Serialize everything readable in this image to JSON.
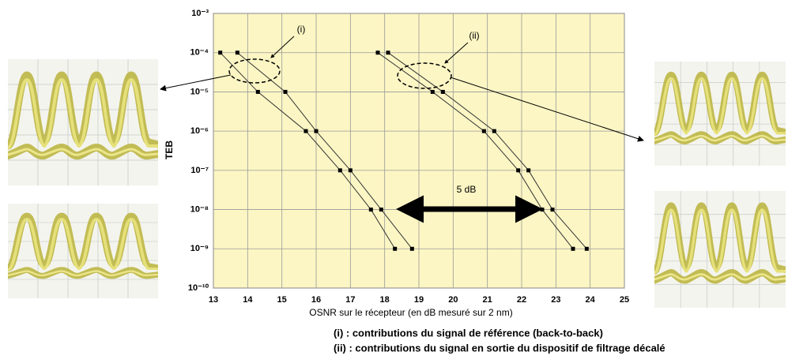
{
  "chart_data": {
    "type": "line",
    "ylabel": "TEB",
    "xlabel": "OSNR sur le récepteur (en dB mesuré sur 2 nm)",
    "xlim": [
      13,
      25
    ],
    "xticks": [
      13,
      14,
      15,
      16,
      17,
      18,
      19,
      20,
      21,
      22,
      23,
      24,
      25
    ],
    "ylim": [
      1e-10,
      0.001
    ],
    "log_y": true,
    "yticks": [
      {
        "value": 1e-10,
        "label": "10⁻¹⁰"
      },
      {
        "value": 1e-09,
        "label": "10⁻⁹"
      },
      {
        "value": 1e-08,
        "label": "10⁻⁸"
      },
      {
        "value": 1e-07,
        "label": "10⁻⁷"
      },
      {
        "value": 1e-06,
        "label": "10⁻⁶"
      },
      {
        "value": 1e-05,
        "label": "10⁻⁵"
      },
      {
        "value": 0.0001,
        "label": "10⁻⁴"
      },
      {
        "value": 0.001,
        "label": "10⁻³"
      }
    ],
    "grid": true,
    "series": [
      {
        "color": "#333333",
        "x": [
          13.2,
          14.3,
          15.7,
          16.7,
          17.6,
          18.3
        ],
        "values": [
          0.0001,
          1e-05,
          1e-06,
          1e-07,
          1e-08,
          1e-09
        ]
      },
      {
        "color": "#333333",
        "x": [
          13.7,
          15.1,
          16.0,
          17.0,
          17.9,
          18.8
        ],
        "values": [
          0.0001,
          1e-05,
          1e-06,
          1e-07,
          1e-08,
          1e-09
        ]
      },
      {
        "color": "#333333",
        "x": [
          17.8,
          19.4,
          20.9,
          21.9,
          22.6,
          23.5
        ],
        "values": [
          0.0001,
          1e-05,
          1e-06,
          1e-07,
          1e-08,
          1e-09
        ]
      },
      {
        "color": "#333333",
        "x": [
          18.1,
          19.7,
          21.2,
          22.2,
          22.9,
          23.9
        ],
        "values": [
          0.0001,
          1e-05,
          1e-06,
          1e-07,
          1e-08,
          1e-09
        ]
      }
    ],
    "annotations": [
      "(i)",
      "(ii)",
      "5 dB"
    ],
    "notes": [
      "(i) : contributions du signal de référence (back-to-back)",
      "(ii) : contributions du signal en sortie du dispositif de filtrage décalé"
    ]
  }
}
